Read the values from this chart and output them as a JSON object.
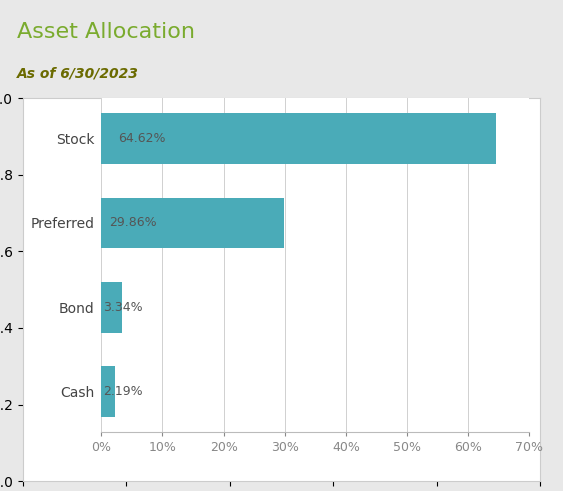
{
  "title": "Asset Allocation",
  "subtitle": "As of 6/30/2023",
  "categories": [
    "Cash",
    "Bond",
    "Preferred",
    "Stock"
  ],
  "values": [
    2.19,
    3.34,
    29.86,
    64.62
  ],
  "labels": [
    "2.19%",
    "3.34%",
    "29.86%",
    "64.62%"
  ],
  "bar_color": "#4aabb8",
  "title_color": "#7aab2e",
  "subtitle_color": "#6b6b00",
  "label_color": "#555555",
  "background_color": "#e8e8e8",
  "chart_background": "#ffffff",
  "xlim": [
    0,
    70
  ],
  "xticks": [
    0,
    10,
    20,
    30,
    40,
    50,
    60,
    70
  ],
  "xtick_labels": [
    "0%",
    "10%",
    "20%",
    "30%",
    "40%",
    "50%",
    "60%",
    "70%"
  ],
  "grid_color": "#d0d0d0",
  "title_fontsize": 16,
  "subtitle_fontsize": 10,
  "tick_fontsize": 9,
  "label_fontsize": 9,
  "ylabel_fontsize": 10
}
